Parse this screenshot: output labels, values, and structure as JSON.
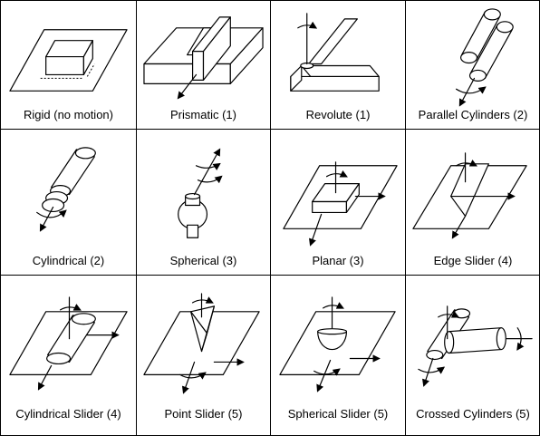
{
  "joints": [
    {
      "label": "Rigid (no motion)"
    },
    {
      "label": "Prismatic (1)"
    },
    {
      "label": "Revolute (1)"
    },
    {
      "label": "Parallel Cylinders (2)"
    },
    {
      "label": "Cylindrical (2)"
    },
    {
      "label": "Spherical (3)"
    },
    {
      "label": "Planar (3)"
    },
    {
      "label": "Edge Slider (4)"
    },
    {
      "label": "Cylindrical Slider (4)"
    },
    {
      "label": "Point Slider (5)"
    },
    {
      "label": "Spherical Slider (5)"
    },
    {
      "label": "Crossed Cylinders (5)"
    }
  ]
}
